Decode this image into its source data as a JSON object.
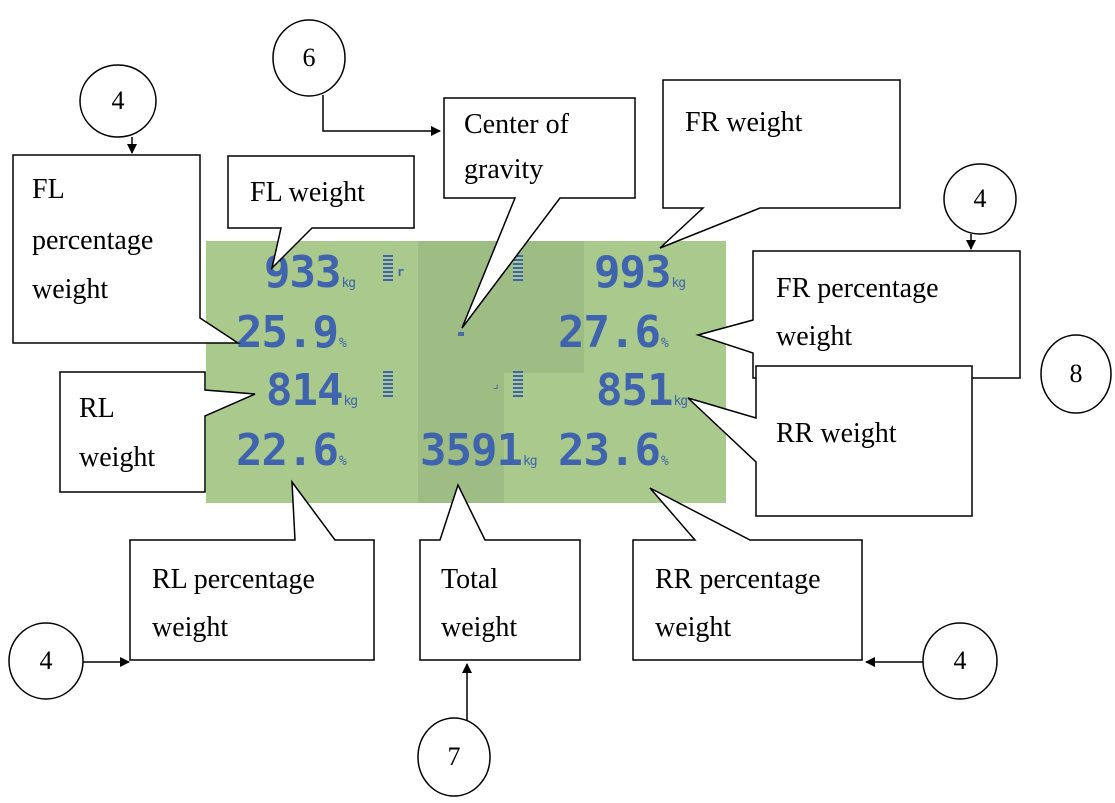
{
  "lcd": {
    "fl_weight": "933",
    "fr_weight": "993",
    "fl_percent": "25.9",
    "fr_percent": "27.6",
    "rl_weight": "814",
    "rr_weight": "851",
    "rl_percent": "22.6",
    "total_weight": "3591",
    "rr_percent": "23.6"
  },
  "labels": {
    "fl_percentage_weight": [
      "FL",
      "percentage",
      "weight"
    ],
    "fl_weight": "FL weight",
    "center_of_gravity": [
      "Center of",
      "gravity"
    ],
    "fr_weight": "FR weight",
    "fr_percentage_weight": [
      "FR percentage",
      "weight"
    ],
    "rl_weight": [
      "RL",
      "weight"
    ],
    "rr_weight": "RR weight",
    "rl_percentage_weight": [
      "RL percentage",
      "weight"
    ],
    "total_weight": [
      "Total",
      "weight"
    ],
    "rr_percentage_weight": [
      "RR percentage",
      "weight"
    ]
  },
  "callout_numbers": {
    "top_left": "4",
    "top_center": "6",
    "right_upper": "4",
    "right_side": "8",
    "bottom_left": "4",
    "bottom_center": "7",
    "bottom_right": "4"
  }
}
